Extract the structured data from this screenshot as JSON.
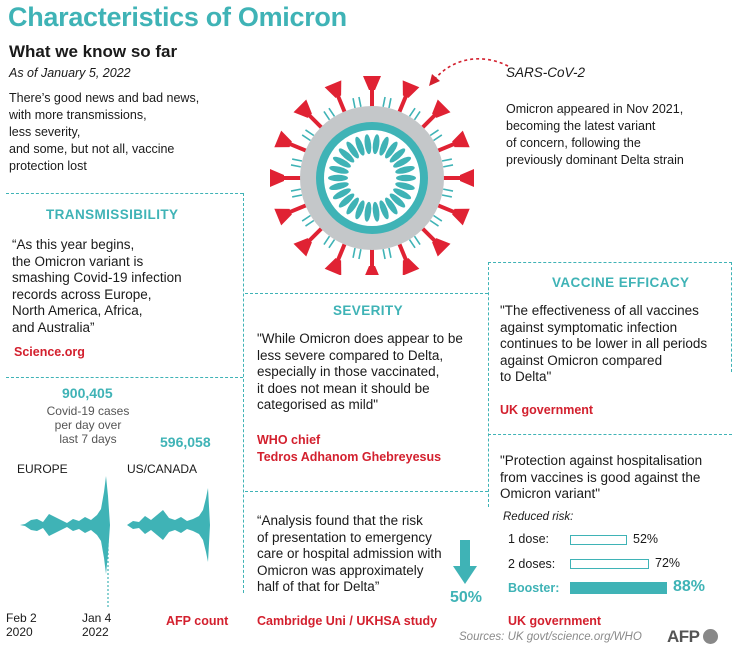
{
  "header": {
    "title": "Characteristics of Omicron",
    "subtitle": "What we know so far",
    "as_of": "As of January 5, 2022",
    "intro_lines": [
      "There’s good news and bad news,",
      "with more transmissions,",
      "less severity,",
      "and some, but not all, vaccine",
      "protection lost"
    ]
  },
  "virus": {
    "label": "SARS-CoV-2",
    "note_lines": [
      "Omicron appeared in Nov 2021,",
      "becoming the latest variant",
      "of concern, following the",
      "previously dominant Delta strain"
    ]
  },
  "transmissibility": {
    "heading": "TRANSMISSIBILITY",
    "quote_lines": [
      "“As this year begins,",
      "the Omicron variant is",
      "smashing Covid-19 infection",
      "records across Europe,",
      "North America, Africa,",
      "and Australia”"
    ],
    "source": "Science.org",
    "europe_value": "900,405",
    "cases_note_lines": [
      "Covid-19 cases",
      "per day over",
      "last 7 days"
    ],
    "us_value": "596,058",
    "europe_label": "EUROPE",
    "us_label": "US/CANADA",
    "date_start_lines": [
      "Feb 2",
      "2020"
    ],
    "date_end_lines": [
      "Jan 4",
      "2022"
    ],
    "chart_source": "AFP count"
  },
  "severity": {
    "heading": "SEVERITY",
    "quote_lines": [
      "\"While Omicron does appear to be",
      "less severe compared to Delta,",
      "especially in those vaccinated,",
      "it does not mean it should be",
      "categorised as mild\""
    ],
    "source_lines": [
      "WHO chief",
      "Tedros Adhanom Ghebreyesus"
    ],
    "quote2_lines": [
      "“Analysis found that the risk",
      "of presentation to emergency",
      "care or hospital admission with",
      "Omicron was approximately",
      "half of that for Delta”"
    ],
    "reduction": "50%",
    "source2": "Cambridge Uni / UKHSA study"
  },
  "vaccine": {
    "heading": "VACCINE EFFICACY",
    "quote_lines": [
      "\"The effectiveness of all vaccines",
      "against symptomatic infection",
      "continues to be lower in all periods",
      "against Omicron compared",
      "to Delta\""
    ],
    "source": "UK government",
    "quote2_lines": [
      "\"Protection against hospitalisation",
      "from vaccines is good against the",
      "Omicron variant\""
    ],
    "reduced_risk_label": "Reduced risk:",
    "source2": "UK government"
  },
  "chart_data": {
    "type": "bar",
    "title": "Reduced risk:",
    "categories": [
      "1 dose:",
      "2 doses:",
      "Booster:"
    ],
    "values": [
      52,
      72,
      88
    ],
    "value_labels": [
      "52%",
      "72%",
      "88%"
    ],
    "unit": "%",
    "xlim": [
      0,
      100
    ],
    "colors": {
      "outline": "#3fb3b6",
      "highlight": "#3fb3b6"
    }
  },
  "footer": {
    "sources": "Sources: UK govt/science.org/WHO",
    "logo": "AFP"
  },
  "colors": {
    "accent": "#3fb3b6",
    "source": "#d3202e",
    "spike": "#e02233"
  }
}
